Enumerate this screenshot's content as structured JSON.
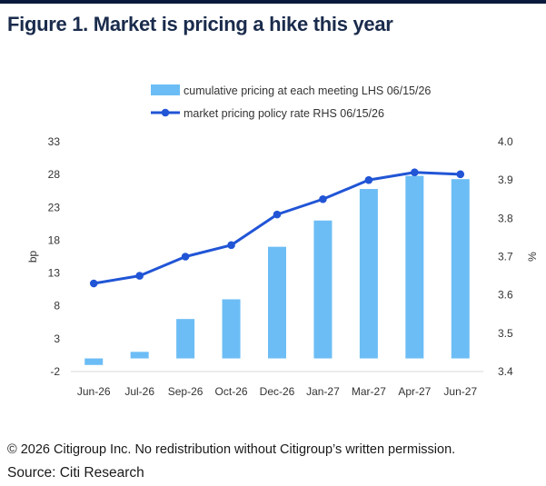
{
  "figure": {
    "title": "Figure 1. Market is pricing a hike this year",
    "note": "© 2026 Citigroup Inc. No redistribution without Citigroup’s written permission.",
    "source": "Source: Citi Research"
  },
  "chart_data": {
    "type": "bar",
    "categories": [
      "Jun-26",
      "Jul-26",
      "Sep-26",
      "Oct-26",
      "Dec-26",
      "Jan-27",
      "Mar-27",
      "Apr-27",
      "Jun-27"
    ],
    "series": [
      {
        "name": "cumulative pricing at each meeting LHS 06/15/26",
        "type": "bar",
        "axis": "left",
        "color": "#6cbdf5",
        "values": [
          -1,
          1,
          6,
          9,
          17,
          21,
          25.8,
          27.8,
          27.3
        ]
      },
      {
        "name": "market pricing policy rate RHS 06/15/26",
        "type": "line",
        "axis": "right",
        "color": "#2155d6",
        "values": [
          3.63,
          3.65,
          3.7,
          3.73,
          3.81,
          3.85,
          3.9,
          3.92,
          3.915
        ]
      }
    ],
    "ylabel": "bp",
    "y2label": "%",
    "ylim": [
      -2,
      33
    ],
    "yticks": [
      "33",
      "28",
      "23",
      "18",
      "13",
      "8",
      "3",
      "-2"
    ],
    "y2lim": [
      3.4,
      4.0
    ],
    "y2ticks": [
      "4.0",
      "3.9",
      "3.8",
      "3.7",
      "3.6",
      "3.5",
      "3.4"
    ],
    "grid": false,
    "legend": "top-center"
  }
}
